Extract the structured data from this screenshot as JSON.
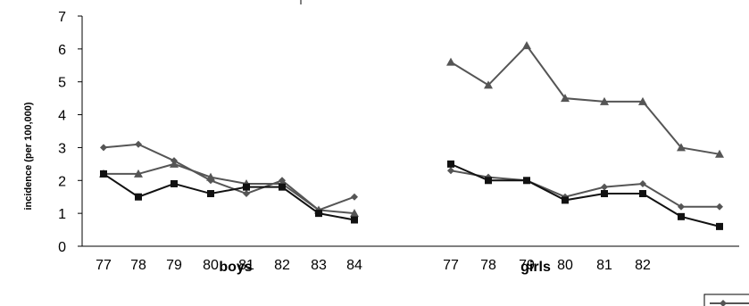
{
  "chart_data": {
    "type": "line",
    "ylabel": "incidence (per 100,000)",
    "ylim": [
      0,
      7
    ],
    "yticks": [
      "0",
      "1",
      "2",
      "3",
      "4",
      "5",
      "6",
      "7"
    ],
    "grid": false,
    "groups": [
      {
        "name": "boys",
        "categories": [
          "77",
          "78",
          "79",
          "80",
          "81",
          "82",
          "83",
          "84"
        ],
        "series": [
          {
            "marker": "diamond",
            "values": [
              3.0,
              3.1,
              2.6,
              2.0,
              1.6,
              2.0,
              1.1,
              1.5
            ]
          },
          {
            "marker": "triangle",
            "values": [
              2.2,
              2.2,
              2.5,
              2.1,
              1.9,
              1.9,
              1.1,
              1.0
            ]
          },
          {
            "marker": "square",
            "values": [
              2.2,
              1.5,
              1.9,
              1.6,
              1.8,
              1.8,
              1.0,
              0.8
            ]
          }
        ]
      },
      {
        "name": "girls",
        "categories": [
          "77",
          "78",
          "79",
          "80",
          "81",
          "82",
          "",
          ""
        ],
        "series": [
          {
            "marker": "diamond",
            "values": [
              2.3,
              2.1,
              2.0,
              1.5,
              1.8,
              1.9,
              1.2,
              1.2
            ]
          },
          {
            "marker": "triangle",
            "values": [
              5.6,
              4.9,
              6.1,
              4.5,
              4.4,
              4.4,
              3.0,
              2.8
            ]
          },
          {
            "marker": "square",
            "values": [
              2.5,
              2.0,
              2.0,
              1.4,
              1.6,
              1.6,
              0.9,
              0.6
            ]
          }
        ]
      }
    ],
    "colors": {
      "series_line": "#555555",
      "square_line": "#111111",
      "axis": "#000000"
    }
  }
}
